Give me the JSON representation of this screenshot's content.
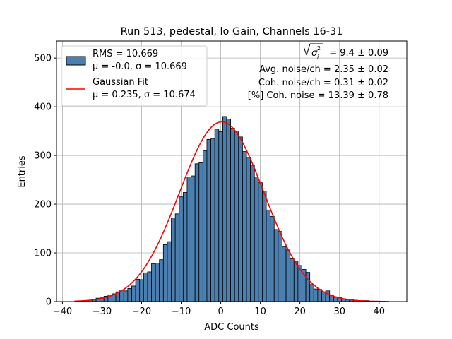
{
  "chart_data": {
    "type": "bar",
    "title": "Run 513, pedestal, lo Gain, Channels 16-31",
    "xlabel": "ADC Counts",
    "ylabel": "Entries",
    "xlim": [
      -41.5,
      47
    ],
    "ylim": [
      0,
      535
    ],
    "xticks": [
      -40,
      -30,
      -20,
      -10,
      0,
      10,
      20,
      30,
      40
    ],
    "yticks": [
      0,
      100,
      200,
      300,
      400,
      500
    ],
    "grid": true,
    "bin_width": 1,
    "bins": [
      [
        -36,
        1
      ],
      [
        -35,
        1
      ],
      [
        -34,
        2
      ],
      [
        -33,
        3
      ],
      [
        -32,
        5
      ],
      [
        -31,
        7
      ],
      [
        -30,
        9
      ],
      [
        -29,
        11
      ],
      [
        -28,
        14
      ],
      [
        -27,
        16
      ],
      [
        -26,
        20
      ],
      [
        -25,
        24
      ],
      [
        -24,
        22
      ],
      [
        -23,
        27
      ],
      [
        -22,
        32
      ],
      [
        -21,
        46
      ],
      [
        -20,
        45
      ],
      [
        -19,
        59
      ],
      [
        -18,
        61
      ],
      [
        -17,
        78
      ],
      [
        -16,
        79
      ],
      [
        -15,
        86
      ],
      [
        -14,
        117
      ],
      [
        -13,
        123
      ],
      [
        -12,
        172
      ],
      [
        -11,
        180
      ],
      [
        -10,
        215
      ],
      [
        -9,
        224
      ],
      [
        -8,
        256
      ],
      [
        -7,
        258
      ],
      [
        -6,
        283
      ],
      [
        -5,
        285
      ],
      [
        -4,
        310
      ],
      [
        -3,
        333
      ],
      [
        -2,
        334
      ],
      [
        -1,
        354
      ],
      [
        0,
        349
      ],
      [
        1,
        380
      ],
      [
        2,
        375
      ],
      [
        3,
        356
      ],
      [
        4,
        350
      ],
      [
        5,
        338
      ],
      [
        6,
        308
      ],
      [
        7,
        296
      ],
      [
        8,
        280
      ],
      [
        9,
        256
      ],
      [
        10,
        244
      ],
      [
        11,
        227
      ],
      [
        12,
        188
      ],
      [
        13,
        175
      ],
      [
        14,
        148
      ],
      [
        15,
        144
      ],
      [
        16,
        113
      ],
      [
        17,
        106
      ],
      [
        18,
        88
      ],
      [
        19,
        83
      ],
      [
        20,
        74
      ],
      [
        21,
        66
      ],
      [
        22,
        60
      ],
      [
        23,
        35
      ],
      [
        24,
        26
      ],
      [
        25,
        25
      ],
      [
        26,
        20
      ],
      [
        27,
        22
      ],
      [
        28,
        14
      ],
      [
        29,
        9
      ],
      [
        30,
        8
      ],
      [
        31,
        6
      ],
      [
        32,
        4
      ],
      [
        33,
        4
      ],
      [
        34,
        3
      ],
      [
        35,
        2
      ],
      [
        36,
        2
      ],
      [
        37,
        2
      ],
      [
        38,
        1
      ],
      [
        39,
        1
      ],
      [
        40,
        1
      ]
    ],
    "series": [
      {
        "name": "RMS = 10.669",
        "type": "histogram",
        "color": "#4a7fb0"
      },
      {
        "name": "Gaussian Fit",
        "type": "line",
        "color": "#ff0000",
        "mu": 0.235,
        "sigma": 10.674,
        "amplitude": 369,
        "x_range": [
          -37,
          42.5
        ]
      }
    ],
    "legend": {
      "placement": "top-left",
      "entries": [
        {
          "line1": "RMS = 10.669",
          "line2": "μ = -0.0, σ = 10.669"
        },
        {
          "line1": "Gaussian Fit",
          "line2": "μ = 0.235, σ = 10.674"
        }
      ]
    },
    "annotations": {
      "sigma_line_prefix": "√",
      "sigma_line_symbol": "σ",
      "sigma_line_sub": "i",
      "sigma_line_sup": "2",
      "sigma_line_value": " = 9.4 ± 0.09",
      "avg_noise": "Avg. noise/ch = 2.35 ± 0.02",
      "coh_noise": "Coh. noise/ch = 0.31 ± 0.02",
      "pct_coh_noise": "[%] Coh. noise = 13.39 ± 0.78"
    }
  }
}
